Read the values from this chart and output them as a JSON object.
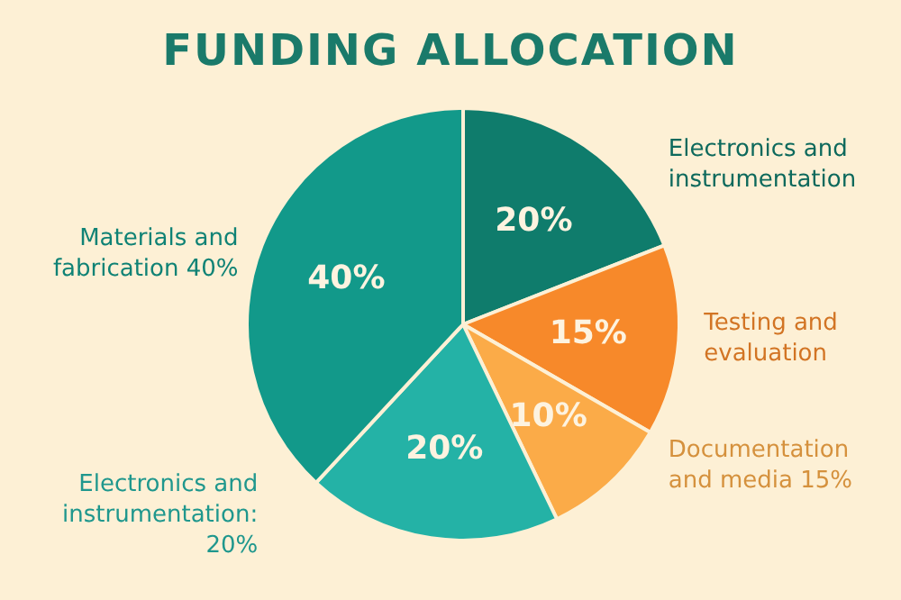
{
  "chart_data": {
    "type": "pie",
    "title": "FUNDING ALLOCATION",
    "categories": [
      "Electronics and instrumentation",
      "Testing and evaluation",
      "Documentation and media 15%",
      "Electronics and instrumentation: 20%",
      "Materials and fabrication 40%"
    ],
    "values": [
      20,
      15,
      10,
      20,
      40
    ],
    "colors": [
      "#0f7c6c",
      "#f7892a",
      "#fbab48",
      "#24b2a6",
      "#12998a"
    ],
    "value_labels": [
      "20%",
      "15%",
      "10%",
      "20%",
      "40%"
    ]
  }
}
